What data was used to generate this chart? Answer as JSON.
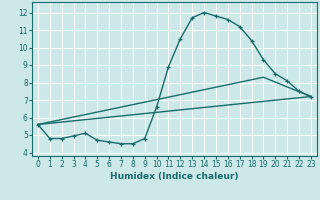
{
  "title": "",
  "xlabel": "Humidex (Indice chaleur)",
  "bg_color": "#cce8e8",
  "grid_color": "#ffffff",
  "line_color": "#1a6b6b",
  "xlim": [
    -0.5,
    23.5
  ],
  "ylim": [
    3.8,
    12.6
  ],
  "xticks": [
    0,
    1,
    2,
    3,
    4,
    5,
    6,
    7,
    8,
    9,
    10,
    11,
    12,
    13,
    14,
    15,
    16,
    17,
    18,
    19,
    20,
    21,
    22,
    23
  ],
  "yticks": [
    4,
    5,
    6,
    7,
    8,
    9,
    10,
    11,
    12
  ],
  "curve1_x": [
    0,
    1,
    2,
    3,
    4,
    5,
    6,
    7,
    8,
    9,
    10,
    11,
    12,
    13,
    14,
    15,
    16,
    17,
    18,
    19,
    20,
    21,
    22,
    23
  ],
  "curve1_y": [
    5.6,
    4.8,
    4.8,
    4.95,
    5.1,
    4.7,
    4.6,
    4.5,
    4.5,
    4.8,
    6.6,
    8.9,
    10.5,
    11.7,
    12.0,
    11.8,
    11.6,
    11.2,
    10.4,
    9.3,
    8.5,
    8.1,
    7.5,
    7.2
  ],
  "curve2_x": [
    0,
    23
  ],
  "curve2_y": [
    5.6,
    7.2
  ],
  "curve3_x": [
    0,
    19,
    23
  ],
  "curve3_y": [
    5.6,
    8.3,
    7.2
  ],
  "tick_fontsize": 5.5,
  "xlabel_fontsize": 6.5
}
